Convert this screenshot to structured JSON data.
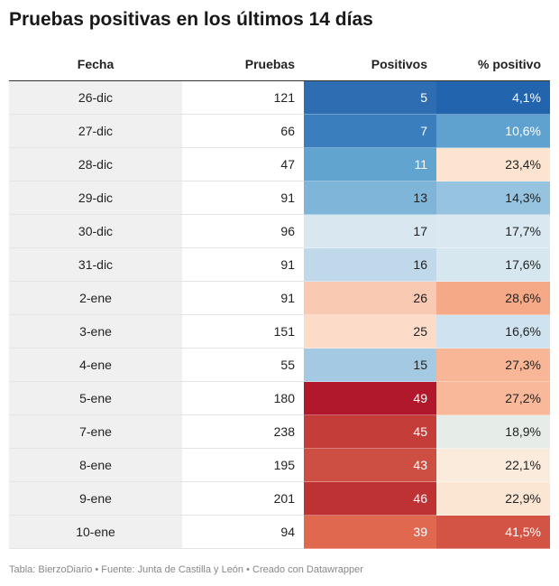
{
  "title": "Pruebas positivas en los últimos 14 días",
  "footer": "Tabla: BierzoDiario • Fuente: Junta de Castilla y León • Creado con Datawrapper",
  "chart_data": {
    "type": "table",
    "columns": [
      "Fecha",
      "Pruebas",
      "Positivos",
      "% positivo"
    ],
    "rows": [
      {
        "fecha": "26-dic",
        "pruebas": "121",
        "positivos": "5",
        "pct": "4,1%",
        "positivos_color": "#2f6db2",
        "pct_color": "#2265ae"
      },
      {
        "fecha": "27-dic",
        "pruebas": "66",
        "positivos": "7",
        "pct": "10,6%",
        "positivos_color": "#3a7ebd",
        "pct_color": "#5fa2cf"
      },
      {
        "fecha": "28-dic",
        "pruebas": "47",
        "positivos": "11",
        "pct": "23,4%",
        "positivos_color": "#62a4d0",
        "pct_color": "#fce4d0"
      },
      {
        "fecha": "29-dic",
        "pruebas": "91",
        "positivos": "13",
        "pct": "14,3%",
        "positivos_color": "#7eb5d8",
        "pct_color": "#96c3df"
      },
      {
        "fecha": "30-dic",
        "pruebas": "96",
        "positivos": "17",
        "pct": "17,7%",
        "positivos_color": "#d8e7f0",
        "pct_color": "#d9e8f1"
      },
      {
        "fecha": "31-dic",
        "pruebas": "91",
        "positivos": "16",
        "pct": "17,6%",
        "positivos_color": "#bfd9ea",
        "pct_color": "#d7e7f0"
      },
      {
        "fecha": "2-ene",
        "pruebas": "91",
        "positivos": "26",
        "pct": "28,6%",
        "positivos_color": "#fac9b2",
        "pct_color": "#f6a987"
      },
      {
        "fecha": "3-ene",
        "pruebas": "151",
        "positivos": "25",
        "pct": "16,6%",
        "positivos_color": "#fcdcc9",
        "pct_color": "#cfe2ef"
      },
      {
        "fecha": "4-ene",
        "pruebas": "55",
        "positivos": "15",
        "pct": "27,3%",
        "positivos_color": "#a3cae2",
        "pct_color": "#f8b697"
      },
      {
        "fecha": "5-ene",
        "pruebas": "180",
        "positivos": "49",
        "pct": "27,2%",
        "positivos_color": "#b2182b",
        "pct_color": "#f9b899"
      },
      {
        "fecha": "7-ene",
        "pruebas": "238",
        "positivos": "45",
        "pct": "18,9%",
        "positivos_color": "#c53d39",
        "pct_color": "#e6ece8"
      },
      {
        "fecha": "8-ene",
        "pruebas": "195",
        "positivos": "43",
        "pct": "22,1%",
        "positivos_color": "#cd4f43",
        "pct_color": "#faebdc"
      },
      {
        "fecha": "9-ene",
        "pruebas": "201",
        "positivos": "46",
        "pct": "22,9%",
        "positivos_color": "#bf3234",
        "pct_color": "#fbe6d4"
      },
      {
        "fecha": "10-ene",
        "pruebas": "94",
        "positivos": "39",
        "pct": "41,5%",
        "positivos_color": "#e0684f",
        "pct_color": "#d35444"
      }
    ]
  }
}
